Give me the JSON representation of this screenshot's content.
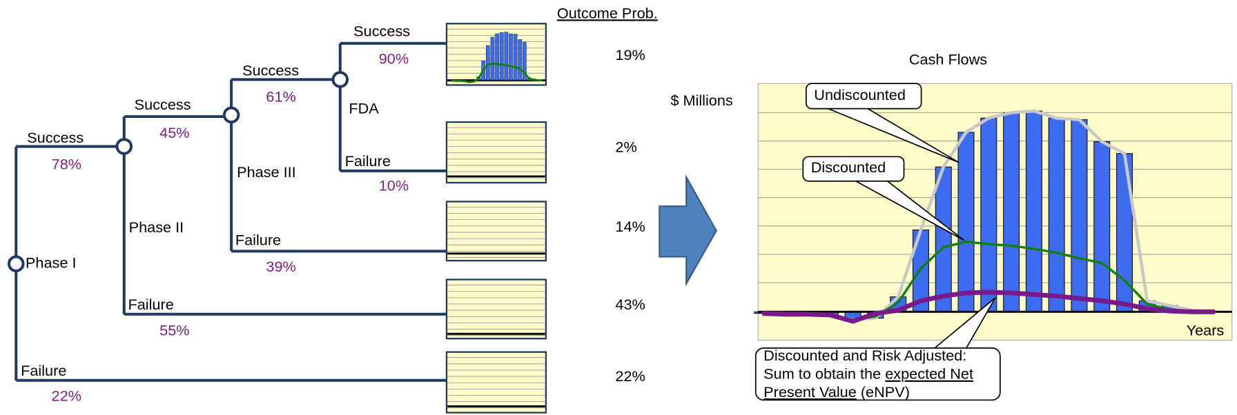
{
  "tree": {
    "nodes": [
      {
        "label": "Phase I"
      },
      {
        "label": "Phase II"
      },
      {
        "label": "Phase III"
      },
      {
        "label": "FDA"
      }
    ],
    "branches": [
      {
        "label": "Success",
        "prob": "78%"
      },
      {
        "label": "Failure",
        "prob": "22%"
      },
      {
        "label": "Success",
        "prob": "45%"
      },
      {
        "label": "Failure",
        "prob": "55%"
      },
      {
        "label": "Success",
        "prob": "61%"
      },
      {
        "label": "Failure",
        "prob": "39%"
      },
      {
        "label": "Success",
        "prob": "90%"
      },
      {
        "label": "Failure",
        "prob": "10%"
      }
    ]
  },
  "outcomes": {
    "header": "Outcome Prob.",
    "values": [
      "19%",
      "2%",
      "14%",
      "43%",
      "22%"
    ]
  },
  "cash_flows": {
    "title": "Cash Flows",
    "y_label": "$ Millions",
    "x_label": "Years",
    "callouts": {
      "undiscounted": "Undiscounted",
      "discounted": "Discounted",
      "risk_adjusted": {
        "line1": "Discounted and Risk Adjusted:",
        "line2": "Sum to obtain the ",
        "underline1": "expected Net",
        "underline2": "Present Value",
        "line3": " (eNPV)"
      }
    },
    "undiscounted": [
      -2,
      -3,
      -3,
      -5,
      -10,
      -8,
      19,
      104,
      184,
      228,
      246,
      253,
      255,
      246,
      244,
      216,
      201,
      14,
      8,
      2,
      0
    ],
    "discounted": [
      -2,
      -3,
      -3,
      -5,
      -10,
      -6,
      12,
      55,
      82,
      89,
      86,
      84,
      80,
      75,
      68,
      62,
      40,
      10,
      3,
      1,
      0
    ],
    "risk_adjusted": [
      -2,
      -3,
      -3,
      -4,
      -12,
      -2,
      2,
      14,
      20,
      24,
      25,
      24,
      22,
      20,
      17,
      14,
      10,
      4,
      1,
      0,
      0
    ]
  }
}
